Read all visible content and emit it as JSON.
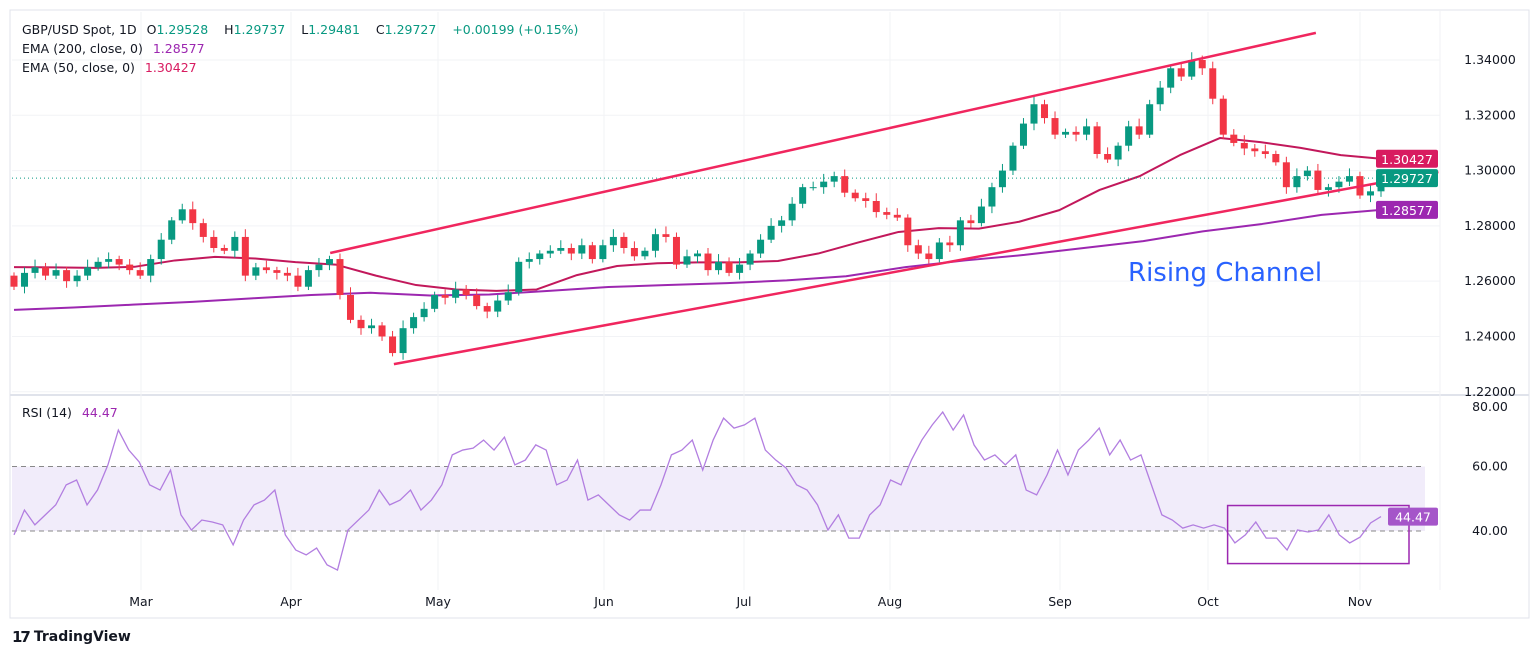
{
  "header": {
    "symbol": "GBP/USD Spot, 1D",
    "open_label": "O",
    "open": "1.29528",
    "high_label": "H",
    "high": "1.29737",
    "low_label": "L",
    "low": "1.29481",
    "close_label": "C",
    "close": "1.29727",
    "change": "+0.00199 (+0.15%)"
  },
  "indicators": {
    "ema200": {
      "label": "EMA (200, close, 0)",
      "value": "1.28577",
      "color": "#9c27b0"
    },
    "ema50": {
      "label": "EMA (50, close, 0)",
      "value": "1.30427",
      "color": "#d81b60"
    },
    "rsi": {
      "label": "RSI (14)",
      "value": "44.47",
      "color": "#b27ee0"
    }
  },
  "colors": {
    "up": "#089981",
    "down": "#f23645",
    "channel": "#f0265e",
    "annotation_text": "#2962ff",
    "rsi_box": "#9c27b0",
    "rsi_band": "#f1ecfa"
  },
  "annotation": "Rising Channel",
  "footer": {
    "brand": "TradingView"
  },
  "chart_data": [
    {
      "type": "candlestick",
      "title": "GBP/USD Spot, 1D",
      "x_ticks": [
        "Mar",
        "Apr",
        "May",
        "Jun",
        "Jul",
        "Aug",
        "Sep",
        "Oct",
        "Nov"
      ],
      "y_ticks": [
        "1.34000",
        "1.32000",
        "1.30000",
        "1.28000",
        "1.26000",
        "1.24000",
        "1.22000"
      ],
      "ylim": [
        1.22,
        1.345
      ],
      "closes": [
        1.258,
        1.263,
        1.265,
        1.262,
        1.264,
        1.26,
        1.262,
        1.265,
        1.267,
        1.268,
        1.266,
        1.264,
        1.262,
        1.268,
        1.275,
        1.282,
        1.286,
        1.281,
        1.276,
        1.272,
        1.271,
        1.276,
        1.262,
        1.265,
        1.264,
        1.263,
        1.262,
        1.258,
        1.264,
        1.266,
        1.268,
        1.255,
        1.246,
        1.243,
        1.244,
        1.24,
        1.234,
        1.243,
        1.247,
        1.25,
        1.255,
        1.254,
        1.257,
        1.255,
        1.251,
        1.249,
        1.253,
        1.256,
        1.267,
        1.268,
        1.27,
        1.271,
        1.272,
        1.27,
        1.273,
        1.268,
        1.273,
        1.276,
        1.272,
        1.269,
        1.271,
        1.277,
        1.276,
        1.266,
        1.269,
        1.27,
        1.264,
        1.267,
        1.263,
        1.266,
        1.27,
        1.275,
        1.28,
        1.282,
        1.288,
        1.294,
        1.294,
        1.296,
        1.298,
        1.292,
        1.29,
        1.289,
        1.285,
        1.284,
        1.283,
        1.273,
        1.27,
        1.268,
        1.274,
        1.273,
        1.282,
        1.281,
        1.287,
        1.294,
        1.3,
        1.309,
        1.317,
        1.324,
        1.319,
        1.313,
        1.314,
        1.313,
        1.316,
        1.306,
        1.304,
        1.309,
        1.316,
        1.313,
        1.324,
        1.33,
        1.337,
        1.334,
        1.34,
        1.337,
        1.326,
        1.313,
        1.31,
        1.308,
        1.307,
        1.306,
        1.303,
        1.294,
        1.298,
        1.3,
        1.293,
        1.294,
        1.296,
        1.298,
        1.291,
        1.2925,
        1.29727
      ],
      "first_open": 1.262,
      "ema50": [
        1.2651,
        1.265,
        1.2648,
        1.2652,
        1.2675,
        1.2688,
        1.2682,
        1.2669,
        1.266,
        1.262,
        1.2586,
        1.257,
        1.2565,
        1.257,
        1.2622,
        1.2655,
        1.2665,
        1.2668,
        1.2668,
        1.2673,
        1.27,
        1.274,
        1.2778,
        1.2792,
        1.279,
        1.2815,
        1.2857,
        1.293,
        1.298,
        1.3056,
        1.3118,
        1.3103,
        1.3082,
        1.3056,
        1.30427
      ],
      "ema200": [
        1.2496,
        1.2505,
        1.2515,
        1.2525,
        1.2538,
        1.255,
        1.2558,
        1.2548,
        1.2552,
        1.2565,
        1.2579,
        1.2586,
        1.2593,
        1.2603,
        1.2618,
        1.2651,
        1.2675,
        1.2695,
        1.272,
        1.2745,
        1.278,
        1.2807,
        1.284,
        1.28577
      ],
      "last_price": 1.29727,
      "price_labels": [
        {
          "value": 1.30427,
          "text": "1.30427",
          "color": "#d81b60"
        },
        {
          "value": 1.29727,
          "text": "1.29727",
          "color": "#089981"
        },
        {
          "value": 1.28577,
          "text": "1.28577",
          "color": "#9c27b0"
        }
      ],
      "channel": {
        "upper": {
          "from": {
            "month": "Apr",
            "day": 9,
            "price": 1.2702
          },
          "to": {
            "month": "Oct",
            "day": 23,
            "price": 1.3498
          }
        },
        "lower": {
          "from": {
            "month": "Apr",
            "day": 22,
            "price": 1.23
          },
          "to": {
            "month": "Nov",
            "day": 17,
            "price": 1.2995
          }
        }
      }
    },
    {
      "type": "line",
      "title": "RSI (14)",
      "y_ticks": [
        "80.00",
        "60.00",
        "40.00"
      ],
      "ylim": [
        20,
        82
      ],
      "band": [
        40,
        60
      ],
      "values": [
        38.8,
        46.5,
        41.9,
        45.0,
        48.1,
        54.3,
        55.8,
        48.1,
        52.7,
        60.5,
        71.3,
        65.1,
        61.4,
        54.3,
        52.7,
        58.9,
        45.0,
        40.3,
        43.4,
        42.8,
        41.9,
        35.7,
        43.4,
        48.1,
        49.6,
        52.7,
        38.8,
        34.1,
        32.6,
        34.7,
        29.5,
        27.9,
        40.3,
        43.4,
        46.5,
        52.7,
        48.1,
        49.6,
        52.7,
        46.5,
        49.6,
        54.3,
        63.6,
        65.1,
        65.7,
        68.2,
        65.1,
        69.1,
        60.5,
        62.0,
        66.7,
        65.1,
        54.3,
        55.8,
        62.0,
        49.6,
        51.2,
        48.1,
        45.0,
        43.4,
        46.5,
        46.5,
        54.3,
        63.6,
        65.1,
        68.2,
        58.9,
        68.2,
        75.0,
        71.9,
        72.9,
        75.0,
        65.1,
        62.0,
        59.5,
        54.3,
        52.7,
        48.1,
        40.3,
        45.0,
        37.8,
        37.8,
        45.0,
        48.1,
        55.8,
        54.3,
        62.0,
        68.2,
        72.9,
        76.9,
        71.3,
        76.0,
        66.7,
        62.0,
        63.6,
        60.5,
        63.6,
        52.7,
        51.2,
        57.4,
        65.1,
        57.4,
        65.1,
        68.2,
        71.9,
        63.6,
        68.2,
        62.0,
        63.6,
        54.3,
        45.0,
        43.4,
        40.9,
        41.9,
        40.9,
        41.9,
        40.9,
        36.3,
        38.8,
        42.8,
        37.8,
        37.8,
        34.1,
        40.3,
        39.7,
        40.3,
        45.0,
        38.8,
        36.3,
        38.1,
        42.5,
        44.47
      ],
      "current": {
        "value": 44.47,
        "text": "44.47"
      },
      "box": {
        "from": {
          "month": "Oct",
          "day": 5,
          "rsi": 47.9
        },
        "to": {
          "month": "Nov",
          "day": 11,
          "rsi": 29.9
        }
      }
    }
  ]
}
